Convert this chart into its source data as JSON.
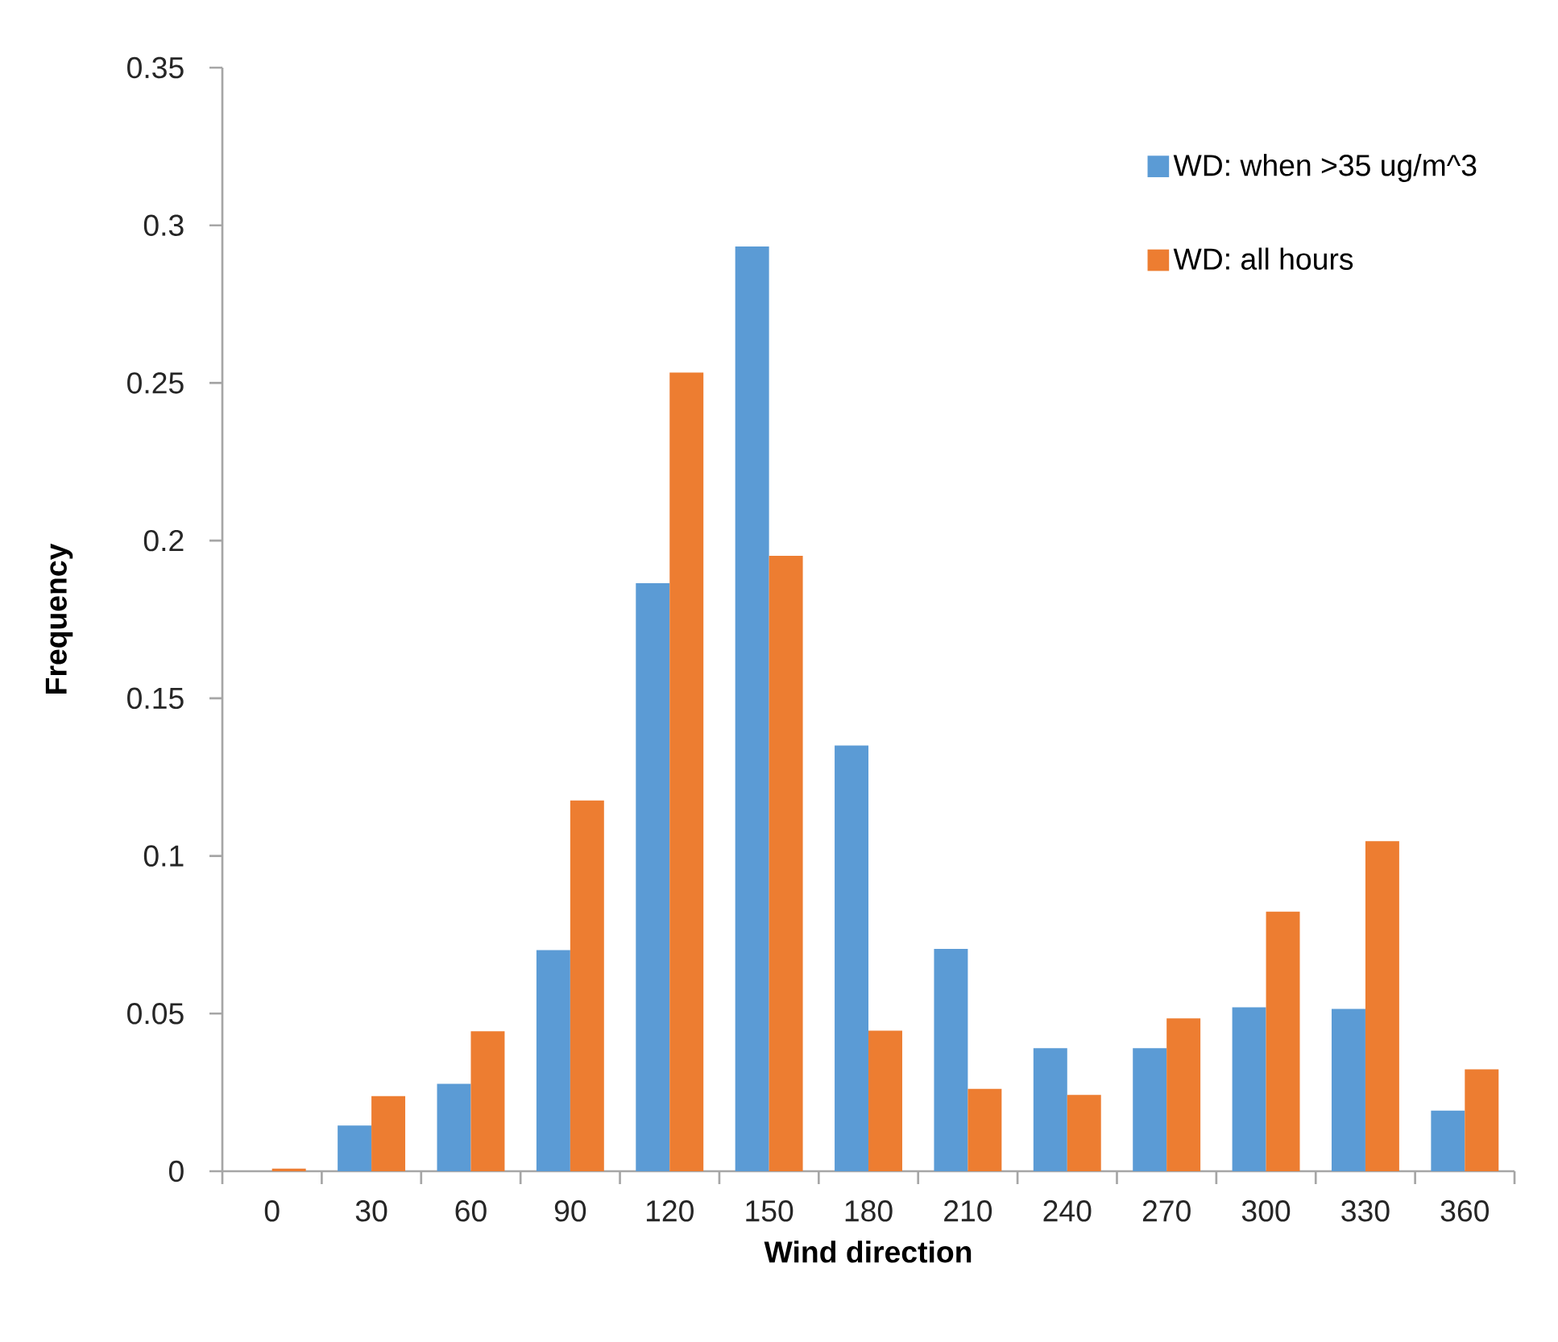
{
  "chart_data": {
    "type": "bar",
    "xlabel": "Wind direction",
    "ylabel": "Frequency",
    "categories": [
      "0",
      "30",
      "60",
      "90",
      "120",
      "150",
      "180",
      "210",
      "240",
      "270",
      "300",
      "330",
      "360"
    ],
    "series": [
      {
        "name": "WD: when >35 ug/m^3",
        "color": "#5b9bd5",
        "values": [
          0,
          0.0145,
          0.0277,
          0.0701,
          0.1865,
          0.2933,
          0.135,
          0.0705,
          0.039,
          0.039,
          0.052,
          0.0515,
          0.0192
        ]
      },
      {
        "name": "WD: all hours",
        "color": "#ed7d31",
        "values": [
          0.0008,
          0.0238,
          0.0444,
          0.1176,
          0.2533,
          0.1952,
          0.0446,
          0.0261,
          0.0242,
          0.0485,
          0.0823,
          0.1047,
          0.0323
        ]
      }
    ],
    "ylim": [
      0,
      0.35
    ],
    "yticks": [
      0,
      0.05,
      0.1,
      0.15,
      0.2,
      0.25,
      0.3,
      0.35
    ],
    "grid": false,
    "legend": "top right"
  }
}
